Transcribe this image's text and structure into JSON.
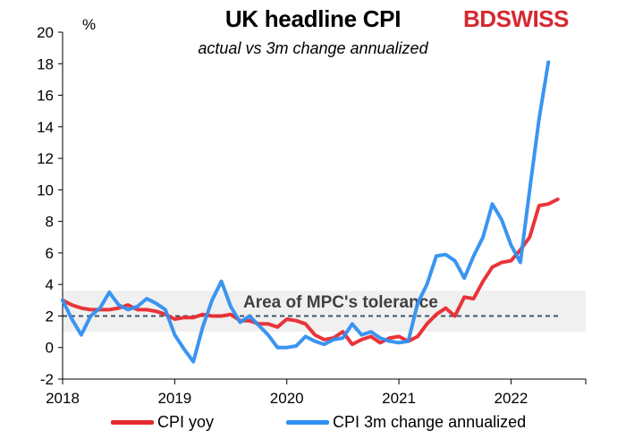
{
  "chart_data": {
    "type": "line",
    "title": "UK headline CPI",
    "subtitle": "actual vs 3m change annualized",
    "ylabel": "%",
    "ylim": [
      -2,
      20
    ],
    "yticks": [
      -2,
      0,
      2,
      4,
      6,
      8,
      10,
      12,
      14,
      16,
      18,
      20
    ],
    "xlim": [
      2018.0,
      2022.6667
    ],
    "xticks": [
      "2018",
      "2019",
      "2020",
      "2021",
      "2022"
    ],
    "grid": false,
    "legend_position": "bottom",
    "band": {
      "label": "Area of MPC's tolerance",
      "ymin": 1,
      "ymax": 3.6,
      "color": "#f0f0f0"
    },
    "target_line": {
      "y": 2,
      "color": "#44546a"
    },
    "series": [
      {
        "name": "CPI yoy",
        "color": "#e8292e",
        "x_start": "2018-01",
        "values": [
          3.0,
          2.7,
          2.5,
          2.4,
          2.4,
          2.4,
          2.5,
          2.7,
          2.4,
          2.4,
          2.3,
          2.1,
          1.8,
          1.9,
          1.9,
          2.1,
          2.0,
          2.0,
          2.1,
          1.7,
          1.7,
          1.5,
          1.5,
          1.3,
          1.8,
          1.7,
          1.5,
          0.8,
          0.5,
          0.6,
          1.0,
          0.2,
          0.5,
          0.7,
          0.3,
          0.6,
          0.7,
          0.4,
          0.7,
          1.5,
          2.1,
          2.5,
          2.0,
          3.2,
          3.1,
          4.2,
          5.1,
          5.4,
          5.5,
          6.2,
          7.0,
          9.0,
          9.1,
          9.4
        ]
      },
      {
        "name": "CPI 3m change annualized",
        "color": "#2f8ff0",
        "x_start": "2018-01",
        "values": [
          3.0,
          1.8,
          0.8,
          2.0,
          2.5,
          3.5,
          2.7,
          2.4,
          2.6,
          3.1,
          2.8,
          2.4,
          0.8,
          -0.1,
          -0.9,
          1.3,
          3.0,
          4.2,
          2.6,
          1.6,
          2.0,
          1.4,
          0.8,
          0.0,
          0.0,
          0.1,
          0.7,
          0.4,
          0.2,
          0.5,
          0.6,
          1.5,
          0.8,
          1.0,
          0.6,
          0.4,
          0.3,
          0.4,
          2.8,
          4.0,
          5.8,
          5.9,
          5.5,
          4.4,
          5.8,
          7.0,
          9.1,
          8.1,
          6.5,
          5.4,
          10.0,
          14.5,
          18.1
        ]
      }
    ]
  },
  "branding": {
    "logo_part1": "BD",
    "logo_part2": "SWISS"
  }
}
